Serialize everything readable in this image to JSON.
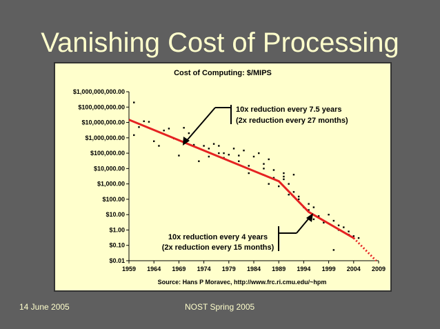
{
  "slide": {
    "title": "Vanishing Cost of Processing",
    "footer_date": "14 June 2005",
    "footer_event": "NOST Spring 2005"
  },
  "colors": {
    "background": "#5f5f5f",
    "title_text": "#ffffcc",
    "chart_background": "#ffffcc",
    "trend_line": "#e52222",
    "points": "#000000"
  },
  "chart_data": {
    "type": "scatter",
    "title": "Cost of Computing: $/MIPS",
    "source": "Source: Hans P Moravec, http://www.frc.ri.cmu.edu/~hpm",
    "y_scale": "log",
    "ylim": [
      0.01,
      1000000000
    ],
    "xlim": [
      1959,
      2009
    ],
    "x_ticks": [
      "1959",
      "1964",
      "1969",
      "1974",
      "1979",
      "1984",
      "1989",
      "1994",
      "1999",
      "2004",
      "2009"
    ],
    "y_ticks": [
      {
        "value": 1000000000,
        "label": "$1,000,000,000.00"
      },
      {
        "value": 100000000,
        "label": "$100,000,000.00"
      },
      {
        "value": 10000000,
        "label": "$10,000,000.00"
      },
      {
        "value": 1000000,
        "label": "$1,000,000.00"
      },
      {
        "value": 100000,
        "label": "$100,000.00"
      },
      {
        "value": 10000,
        "label": "$10,000.00"
      },
      {
        "value": 1000,
        "label": "$1,000.00"
      },
      {
        "value": 100,
        "label": "$100.00"
      },
      {
        "value": 10,
        "label": "$10.00"
      },
      {
        "value": 1,
        "label": "$1.00"
      },
      {
        "value": 0.1,
        "label": "$0.10"
      },
      {
        "value": 0.01,
        "label": "$0.01"
      }
    ],
    "grid": false,
    "annotations": [
      {
        "lines": [
          "10x reduction every 7.5 years",
          "(2x reduction every 27 months)"
        ],
        "position": "top-center"
      },
      {
        "lines": [
          "10x reduction every 4 years",
          "(2x reduction every 15 months)"
        ],
        "position": "bottom-center"
      }
    ],
    "trend": [
      {
        "x": 1959,
        "y": 15000000
      },
      {
        "x": 1989,
        "y": 1500
      },
      {
        "x": 1995,
        "y": 15
      },
      {
        "x": 2004,
        "y": 0.3
      }
    ],
    "trend_extrapolation": [
      {
        "x": 2004,
        "y": 0.3
      },
      {
        "x": 2008.5,
        "y": 0.01
      }
    ],
    "points": [
      {
        "x": 1960,
        "y": 200000000
      },
      {
        "x": 1960,
        "y": 1500000
      },
      {
        "x": 1961,
        "y": 5000000
      },
      {
        "x": 1962,
        "y": 12000000
      },
      {
        "x": 1963,
        "y": 11000000
      },
      {
        "x": 1964,
        "y": 600000
      },
      {
        "x": 1965,
        "y": 300000
      },
      {
        "x": 1966,
        "y": 3000000
      },
      {
        "x": 1967,
        "y": 4000000
      },
      {
        "x": 1968,
        "y": 900000
      },
      {
        "x": 1969,
        "y": 70000
      },
      {
        "x": 1970,
        "y": 4500000
      },
      {
        "x": 1970,
        "y": 600000
      },
      {
        "x": 1971,
        "y": 2000000
      },
      {
        "x": 1972,
        "y": 350000
      },
      {
        "x": 1973,
        "y": 30000
      },
      {
        "x": 1974,
        "y": 300000
      },
      {
        "x": 1975,
        "y": 200000
      },
      {
        "x": 1975,
        "y": 60000
      },
      {
        "x": 1976,
        "y": 400000
      },
      {
        "x": 1977,
        "y": 100000
      },
      {
        "x": 1977,
        "y": 300000
      },
      {
        "x": 1978,
        "y": 50000
      },
      {
        "x": 1978,
        "y": 100000
      },
      {
        "x": 1979,
        "y": 80000
      },
      {
        "x": 1980,
        "y": 200000
      },
      {
        "x": 1981,
        "y": 70000
      },
      {
        "x": 1981,
        "y": 30000
      },
      {
        "x": 1982,
        "y": 150000
      },
      {
        "x": 1983,
        "y": 15000
      },
      {
        "x": 1983,
        "y": 5000
      },
      {
        "x": 1984,
        "y": 60000
      },
      {
        "x": 1985,
        "y": 100000
      },
      {
        "x": 1986,
        "y": 20000
      },
      {
        "x": 1986,
        "y": 10000
      },
      {
        "x": 1987,
        "y": 40000
      },
      {
        "x": 1987,
        "y": 1000
      },
      {
        "x": 1988,
        "y": 8000
      },
      {
        "x": 1988,
        "y": 2500
      },
      {
        "x": 1989,
        "y": 1500
      },
      {
        "x": 1989,
        "y": 700
      },
      {
        "x": 1990,
        "y": 5000
      },
      {
        "x": 1990,
        "y": 3000
      },
      {
        "x": 1990,
        "y": 2000
      },
      {
        "x": 1991,
        "y": 1000
      },
      {
        "x": 1991,
        "y": 200
      },
      {
        "x": 1992,
        "y": 4000
      },
      {
        "x": 1992,
        "y": 150
      },
      {
        "x": 1992,
        "y": 300
      },
      {
        "x": 1993,
        "y": 100
      },
      {
        "x": 1993,
        "y": 150
      },
      {
        "x": 1994,
        "y": 30
      },
      {
        "x": 1995,
        "y": 50
      },
      {
        "x": 1995,
        "y": 20
      },
      {
        "x": 1996,
        "y": 30
      },
      {
        "x": 1996,
        "y": 5
      },
      {
        "x": 1997,
        "y": 8
      },
      {
        "x": 1998,
        "y": 3
      },
      {
        "x": 1999,
        "y": 10
      },
      {
        "x": 2000,
        "y": 4
      },
      {
        "x": 2000,
        "y": 0.05
      },
      {
        "x": 2001,
        "y": 2
      },
      {
        "x": 2001,
        "y": 1
      },
      {
        "x": 2002,
        "y": 1.5
      },
      {
        "x": 2003,
        "y": 0.8
      },
      {
        "x": 2003,
        "y": 0.5
      },
      {
        "x": 2004,
        "y": 0.4
      },
      {
        "x": 2005,
        "y": 0.3
      }
    ]
  }
}
